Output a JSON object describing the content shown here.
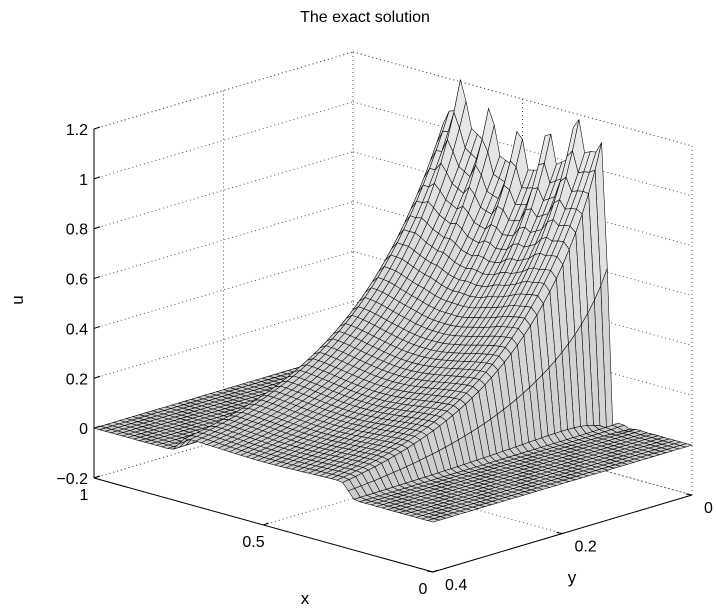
{
  "chart_data": {
    "type": "surface",
    "title": "The exact solution",
    "xlabel": "x",
    "ylabel": "y",
    "zlabel": "u",
    "xlim": [
      0,
      1
    ],
    "ylim": [
      0,
      0.4
    ],
    "zlim": [
      -0.2,
      1.2
    ],
    "x_ticks": [
      0,
      0.5,
      1
    ],
    "x_tick_labels": [
      "0",
      "0.5",
      "1"
    ],
    "y_ticks": [
      0,
      0.2,
      0.4
    ],
    "y_tick_labels": [
      "0",
      "0.2",
      "0.4"
    ],
    "z_ticks": [
      -0.2,
      0,
      0.2,
      0.4,
      0.6,
      0.8,
      1,
      1.2
    ],
    "z_tick_labels": [
      "−0.2",
      "0",
      "0.2",
      "0.4",
      "0.6",
      "0.8",
      "1",
      "1.2"
    ],
    "grid": "dotted",
    "colormap": "gray",
    "surface_color": "#d4d4d4",
    "mesh_color": "#000000"
  }
}
